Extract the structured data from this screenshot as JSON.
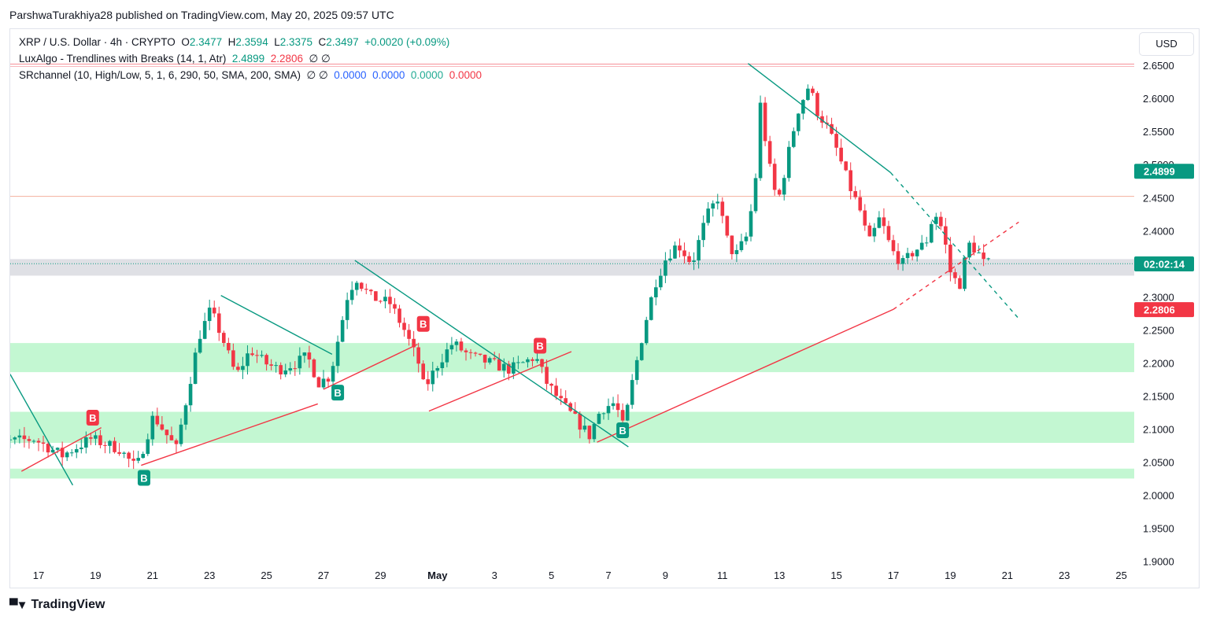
{
  "header": {
    "publisher_line": "ParshwaTurakhiya28 published on TradingView.com, May 20, 2025 09:57 UTC"
  },
  "legend": {
    "symbol": "XRP / U.S. Dollar · 4h · CRYPTO",
    "o_label": "O",
    "o_value": "2.3477",
    "h_label": "H",
    "h_value": "2.3594",
    "l_label": "L",
    "l_value": "2.3375",
    "c_label": "C",
    "c_value": "2.3497",
    "change": "+0.0020 (+0.09%)",
    "indicator1_name": "LuxAlgo - Trendlines with Breaks (14, 1, Atr)",
    "indicator1_v1": "2.4899",
    "indicator1_v2": "2.2806",
    "indicator1_tail": "∅ ∅",
    "indicator2_name": "SRchannel (10, High/Low, 5, 1, 6, 290, 50, SMA, 200, SMA)",
    "indicator2_tail": "∅ ∅",
    "indicator2_v1": "0.0000",
    "indicator2_v2": "0.0000",
    "indicator2_v3": "0.0000",
    "indicator2_v4": "0.0000"
  },
  "currency_button": "USD",
  "footer": {
    "brand": "TradingView",
    "logo_icon": "tradingview-logo-icon"
  },
  "colors": {
    "up": "#089981",
    "down": "#f23645",
    "support_zone": "#b9f6ca",
    "gray_zone": "#d9dbe0",
    "resist_line": "#f7a1a7",
    "upper_trend": "#089981",
    "lower_trend": "#f23645"
  },
  "chart_data": {
    "type": "candlestick",
    "ylim": [
      1.86,
      2.705
    ],
    "y_ticks": [
      "2.6500",
      "2.6000",
      "2.5500",
      "2.5000",
      "2.4500",
      "2.4000",
      "2.3500",
      "2.3000",
      "2.2500",
      "2.2000",
      "2.1500",
      "2.1000",
      "2.0500",
      "2.0000",
      "1.9500",
      "1.9000"
    ],
    "x_ticks": [
      {
        "label": "17",
        "day": 17
      },
      {
        "label": "19",
        "day": 19
      },
      {
        "label": "21",
        "day": 21
      },
      {
        "label": "23",
        "day": 23
      },
      {
        "label": "25",
        "day": 25
      },
      {
        "label": "27",
        "day": 27
      },
      {
        "label": "29",
        "day": 29
      },
      {
        "label": "May",
        "day": 31
      },
      {
        "label": "3",
        "day": 33
      },
      {
        "label": "5",
        "day": 35
      },
      {
        "label": "7",
        "day": 37
      },
      {
        "label": "9",
        "day": 39
      },
      {
        "label": "11",
        "day": 41
      },
      {
        "label": "13",
        "day": 43
      },
      {
        "label": "15",
        "day": 45
      },
      {
        "label": "17",
        "day": 47
      },
      {
        "label": "19",
        "day": 49
      },
      {
        "label": "21",
        "day": 51
      },
      {
        "label": "23",
        "day": 53
      },
      {
        "label": "25",
        "day": 55
      }
    ],
    "price_tags": [
      {
        "label": "2.4899",
        "value": 2.4899,
        "color": "#089981"
      },
      {
        "label": "02:02:14",
        "value": 2.3497,
        "color": "#089981"
      },
      {
        "label": "2.2806",
        "value": 2.2806,
        "color": "#f23645"
      }
    ],
    "zones": [
      {
        "low": 2.332,
        "high": 2.357,
        "color": "#d9dbe0"
      },
      {
        "low": 2.186,
        "high": 2.23,
        "color": "#b9f6ca"
      },
      {
        "low": 2.079,
        "high": 2.126,
        "color": "#b9f6ca"
      },
      {
        "low": 2.025,
        "high": 2.04,
        "color": "#b9f6ca"
      }
    ],
    "levels": [
      {
        "value": 2.652,
        "color": "#f7a1a7"
      },
      {
        "value": 2.452,
        "color": "#f5b9a8"
      }
    ],
    "trendlines": [
      {
        "x1": 16,
        "y1": 2.183,
        "x2": 18.2,
        "y2": 2.015,
        "color": "#089981",
        "dashed": false
      },
      {
        "x1": 16.4,
        "y1": 2.036,
        "x2": 19.2,
        "y2": 2.102,
        "color": "#f23645",
        "dashed": false
      },
      {
        "x1": 23.4,
        "y1": 2.302,
        "x2": 27.3,
        "y2": 2.213,
        "color": "#089981",
        "dashed": false
      },
      {
        "x1": 20.6,
        "y1": 2.045,
        "x2": 26.8,
        "y2": 2.138,
        "color": "#f23645",
        "dashed": false
      },
      {
        "x1": 28.1,
        "y1": 2.355,
        "x2": 37.7,
        "y2": 2.073,
        "color": "#089981",
        "dashed": false
      },
      {
        "x1": 27.0,
        "y1": 2.16,
        "x2": 30.3,
        "y2": 2.228,
        "color": "#f23645",
        "dashed": false
      },
      {
        "x1": 30.7,
        "y1": 2.127,
        "x2": 35.7,
        "y2": 2.217,
        "color": "#f23645",
        "dashed": false
      },
      {
        "x1": 41.9,
        "y1": 2.653,
        "x2": 46.9,
        "y2": 2.488,
        "color": "#089981",
        "dashed": false
      },
      {
        "x1": 46.9,
        "y1": 2.488,
        "x2": 51.4,
        "y2": 2.267,
        "color": "#089981",
        "dashed": true
      },
      {
        "x1": 36.6,
        "y1": 2.08,
        "x2": 47.0,
        "y2": 2.281,
        "color": "#f23645",
        "dashed": false
      },
      {
        "x1": 47.0,
        "y1": 2.281,
        "x2": 51.4,
        "y2": 2.413,
        "color": "#f23645",
        "dashed": true
      },
      {
        "x1": 15.0,
        "y1": 1.958,
        "x2": 15.2,
        "y2": 1.966,
        "color": "#f23645",
        "dashed": false
      }
    ],
    "break_labels": [
      {
        "label": "B",
        "day": 18.9,
        "value": 2.117,
        "color": "#f23645"
      },
      {
        "label": "B",
        "day": 20.7,
        "value": 2.026,
        "color": "#089981"
      },
      {
        "label": "B",
        "day": 27.5,
        "value": 2.155,
        "color": "#089981"
      },
      {
        "label": "B",
        "day": 30.5,
        "value": 2.259,
        "color": "#f23645"
      },
      {
        "label": "B",
        "day": 34.6,
        "value": 2.226,
        "color": "#f23645"
      },
      {
        "label": "B",
        "day": 37.5,
        "value": 2.098,
        "color": "#089981"
      }
    ],
    "anchors": [
      [
        15,
        2.085
      ],
      [
        16,
        2.08
      ],
      [
        17,
        2.085
      ],
      [
        18,
        2.06
      ],
      [
        19,
        2.085
      ],
      [
        20,
        2.07
      ],
      [
        20.6,
        2.04
      ],
      [
        21.2,
        2.12
      ],
      [
        22,
        2.07
      ],
      [
        22.8,
        2.24
      ],
      [
        23.2,
        2.28
      ],
      [
        23.6,
        2.24
      ],
      [
        24.1,
        2.18
      ],
      [
        24.6,
        2.22
      ],
      [
        25.1,
        2.2
      ],
      [
        25.6,
        2.19
      ],
      [
        26.2,
        2.2
      ],
      [
        26.6,
        2.21
      ],
      [
        27,
        2.17
      ],
      [
        27.4,
        2.18
      ],
      [
        27.7,
        2.24
      ],
      [
        28,
        2.3
      ],
      [
        28.3,
        2.33
      ],
      [
        28.8,
        2.3
      ],
      [
        29.5,
        2.29
      ],
      [
        30,
        2.25
      ],
      [
        30.5,
        2.2
      ],
      [
        30.7,
        2.16
      ],
      [
        31.2,
        2.2
      ],
      [
        31.7,
        2.23
      ],
      [
        32.3,
        2.21
      ],
      [
        33,
        2.2
      ],
      [
        33.7,
        2.19
      ],
      [
        34.2,
        2.2
      ],
      [
        34.6,
        2.21
      ],
      [
        35,
        2.17
      ],
      [
        35.5,
        2.14
      ],
      [
        36.1,
        2.11
      ],
      [
        36.5,
        2.09
      ],
      [
        36.9,
        2.13
      ],
      [
        37.4,
        2.14
      ],
      [
        37.7,
        2.1
      ],
      [
        38,
        2.17
      ],
      [
        38.4,
        2.25
      ],
      [
        38.8,
        2.32
      ],
      [
        39.2,
        2.36
      ],
      [
        39.6,
        2.38
      ],
      [
        40.1,
        2.35
      ],
      [
        40.6,
        2.42
      ],
      [
        41,
        2.45
      ],
      [
        41.3,
        2.39
      ],
      [
        41.6,
        2.36
      ],
      [
        42,
        2.39
      ],
      [
        42.3,
        2.46
      ],
      [
        42.5,
        2.59
      ],
      [
        42.8,
        2.5
      ],
      [
        43.1,
        2.44
      ],
      [
        43.4,
        2.5
      ],
      [
        43.8,
        2.58
      ],
      [
        44.2,
        2.62
      ],
      [
        44.5,
        2.58
      ],
      [
        44.8,
        2.56
      ],
      [
        45.2,
        2.52
      ],
      [
        45.6,
        2.47
      ],
      [
        46,
        2.43
      ],
      [
        46.3,
        2.38
      ],
      [
        46.7,
        2.42
      ],
      [
        47.1,
        2.37
      ],
      [
        47.5,
        2.35
      ],
      [
        47.9,
        2.37
      ],
      [
        48.3,
        2.38
      ],
      [
        48.6,
        2.43
      ],
      [
        48.9,
        2.4
      ],
      [
        49.2,
        2.33
      ],
      [
        49.5,
        2.32
      ],
      [
        49.8,
        2.38
      ],
      [
        50.1,
        2.37
      ],
      [
        50.35,
        2.35
      ]
    ]
  }
}
